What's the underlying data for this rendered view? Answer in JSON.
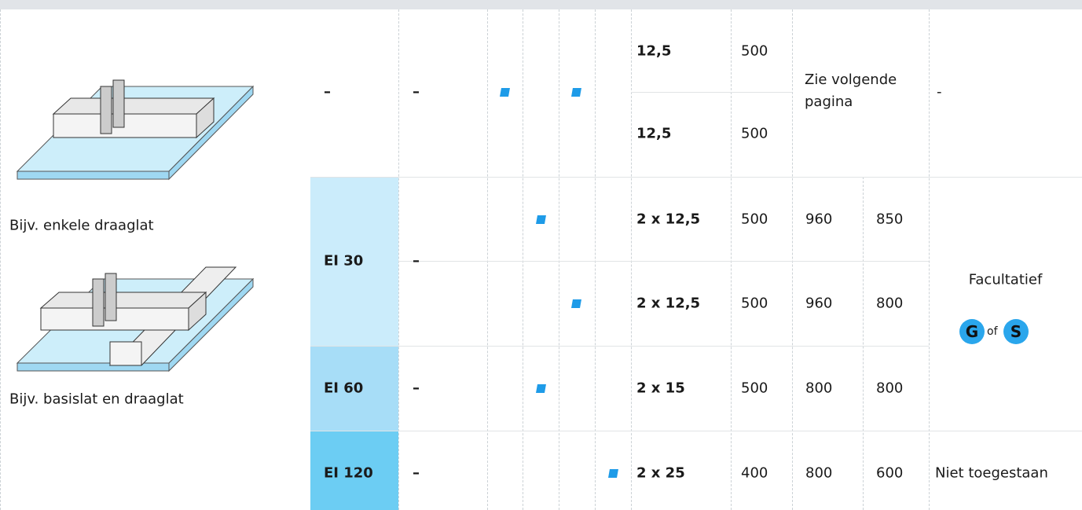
{
  "illustrations": [
    {
      "caption": "Bijv. enkele draaglat"
    },
    {
      "caption": "Bijv. basislat en draaglat"
    }
  ],
  "table": {
    "rows": [
      [
        "–",
        "–",
        "12,5",
        "500",
        "Zie volgende pagina",
        "-"
      ],
      [
        "12,5",
        "500"
      ],
      [
        "EI 30",
        "–",
        "2 x 12,5",
        "500",
        "960",
        "850",
        "Facultatief"
      ],
      [
        "2 x 12,5",
        "500",
        "960",
        "800"
      ],
      [
        "EI 60",
        "–",
        "2 x 15",
        "500",
        "800",
        "800"
      ],
      [
        "EI 120",
        "–",
        "2 x 25",
        "400",
        "800",
        "600",
        "Niet toegestaan"
      ]
    ],
    "badge": {
      "left": "G",
      "joiner": "of",
      "right": "S"
    }
  }
}
